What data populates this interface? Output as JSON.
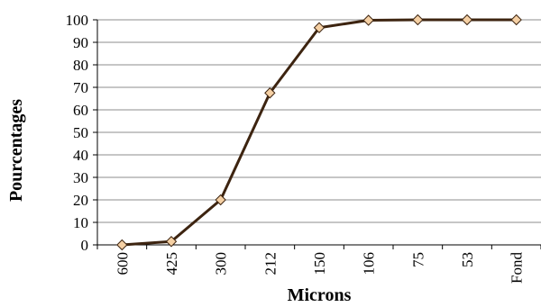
{
  "chart_data": {
    "type": "line",
    "categories": [
      "600",
      "425",
      "300",
      "212",
      "150",
      "106",
      "75",
      "53",
      "Fond"
    ],
    "series": [
      {
        "values": [
          0,
          1.5,
          20,
          67.5,
          96.5,
          99.8,
          100,
          100,
          100
        ]
      }
    ],
    "xlabel": "Microns",
    "ylabel": "Pourcentages",
    "ylim": [
      0,
      100
    ],
    "yticks": [
      0,
      10,
      20,
      30,
      40,
      50,
      60,
      70,
      80,
      90,
      100
    ],
    "grid": true,
    "legend": "none",
    "colors": {
      "line": "#3d2410",
      "marker_fill": "#f5d0a4",
      "marker_stroke": "#3d2410"
    }
  }
}
